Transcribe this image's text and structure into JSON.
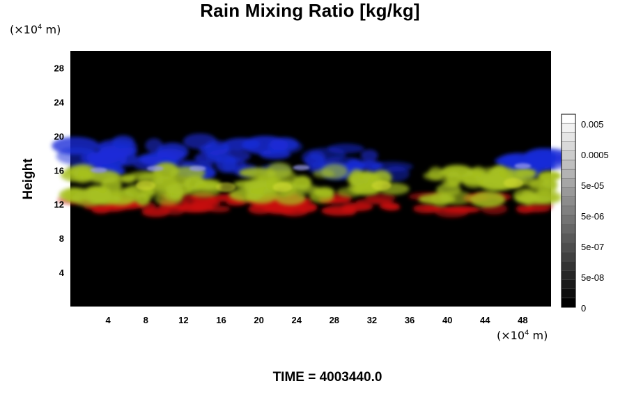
{
  "chart_data": {
    "type": "heatmap",
    "title": "Rain Mixing Ratio [kg/kg]",
    "ylabel": "Height",
    "xlabel": "",
    "x_unit": "(×10",
    "x_unit_exp": "4",
    "x_unit_tail": " m)",
    "y_unit": "(×10",
    "y_unit_exp": "4",
    "y_unit_tail": " m)",
    "xlim": [
      0,
      51
    ],
    "ylim": [
      0,
      30
    ],
    "x_ticks": [
      4,
      8,
      12,
      16,
      20,
      24,
      28,
      32,
      36,
      40,
      44,
      48
    ],
    "y_ticks": [
      4,
      8,
      12,
      16,
      20,
      24,
      28
    ],
    "background": "#000000",
    "colorbar": {
      "labels": [
        "0.005",
        "0.0005",
        "5e-05",
        "5e-06",
        "5e-07",
        "5e-08",
        "0"
      ],
      "scale": "log",
      "colors": [
        "#000000",
        "#ffffff"
      ]
    },
    "layers": [
      {
        "name": "red",
        "color": "#c81010",
        "y_range": [
          11,
          13
        ]
      },
      {
        "name": "yellow-green",
        "color": "#a6c020",
        "y_range": [
          12.5,
          16
        ]
      },
      {
        "name": "blue",
        "color": "#1a2cd8",
        "y_range": [
          15.5,
          19.5
        ]
      }
    ]
  },
  "footer_text": "TIME = 4003440.0"
}
